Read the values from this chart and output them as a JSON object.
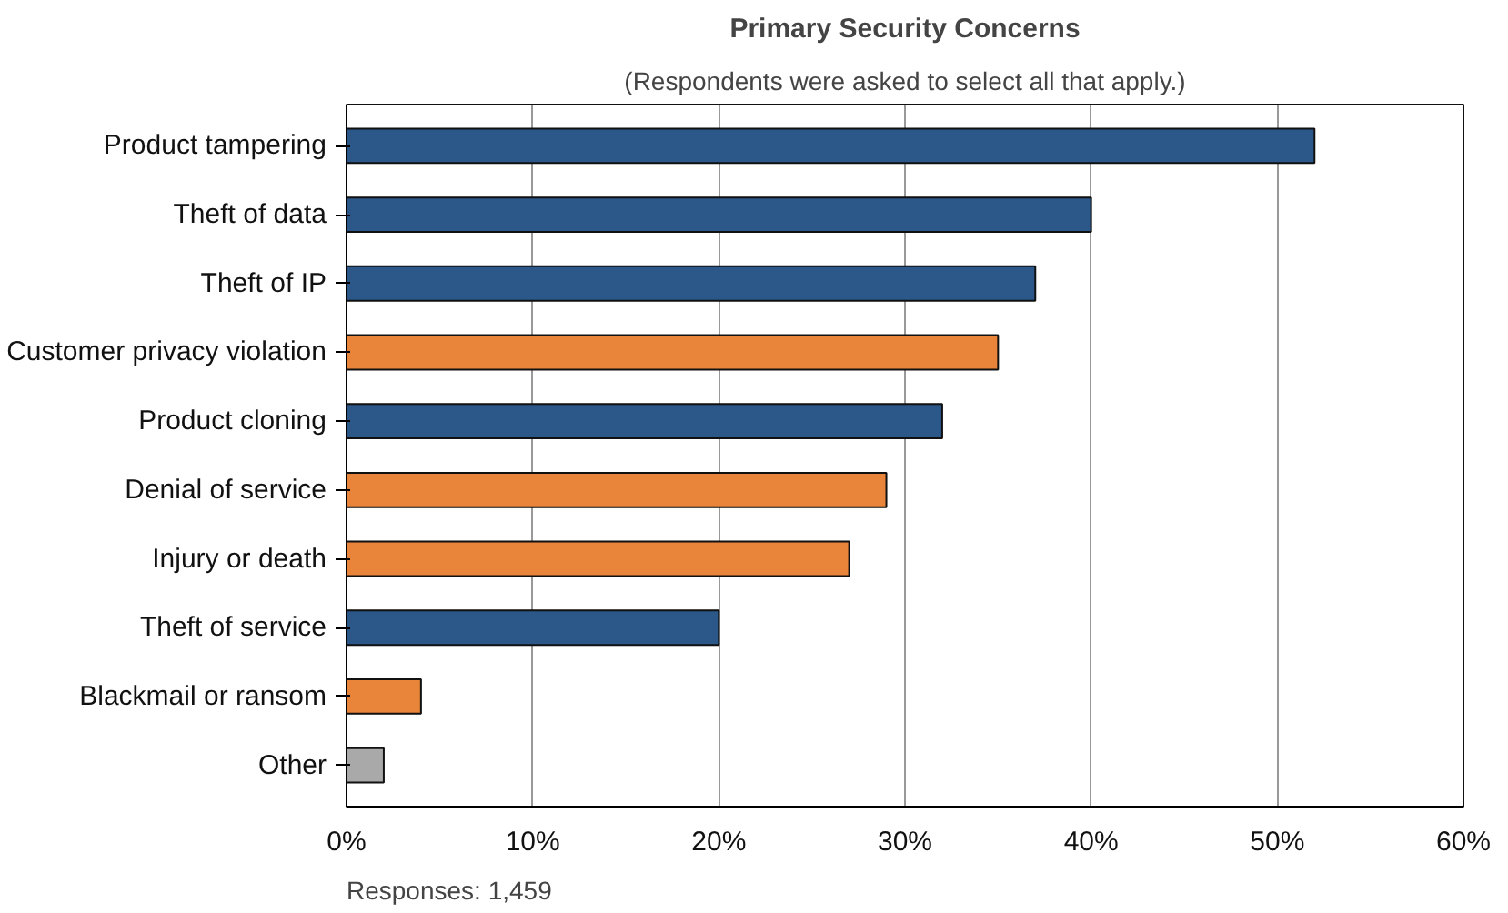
{
  "chart_data": {
    "type": "bar",
    "orientation": "horizontal",
    "title": "Primary Security Concerns",
    "subtitle": "(Respondents were asked to select all that apply.)",
    "categories": [
      "Product tampering",
      "Theft of data",
      "Theft of IP",
      "Customer privacy violation",
      "Product cloning",
      "Denial of service",
      "Injury or death",
      "Theft of service",
      "Blackmail or ransom",
      "Other"
    ],
    "values": [
      52,
      40,
      37,
      35,
      32,
      29,
      27,
      20,
      4,
      2
    ],
    "colors": [
      "#2b5789",
      "#2b5789",
      "#2b5789",
      "#e8853a",
      "#2b5789",
      "#e8853a",
      "#e8853a",
      "#2b5789",
      "#e8853a",
      "#a9a9a9"
    ],
    "xlim": [
      0,
      60
    ],
    "xticks": [
      {
        "value": 0,
        "label": "0%"
      },
      {
        "value": 10,
        "label": "10%"
      },
      {
        "value": 20,
        "label": "20%"
      },
      {
        "value": 30,
        "label": "30%"
      },
      {
        "value": 40,
        "label": "40%"
      },
      {
        "value": 50,
        "label": "50%"
      },
      {
        "value": 60,
        "label": "60%"
      }
    ],
    "grid": "x",
    "annotations": [
      "Responses: 1,459"
    ]
  }
}
